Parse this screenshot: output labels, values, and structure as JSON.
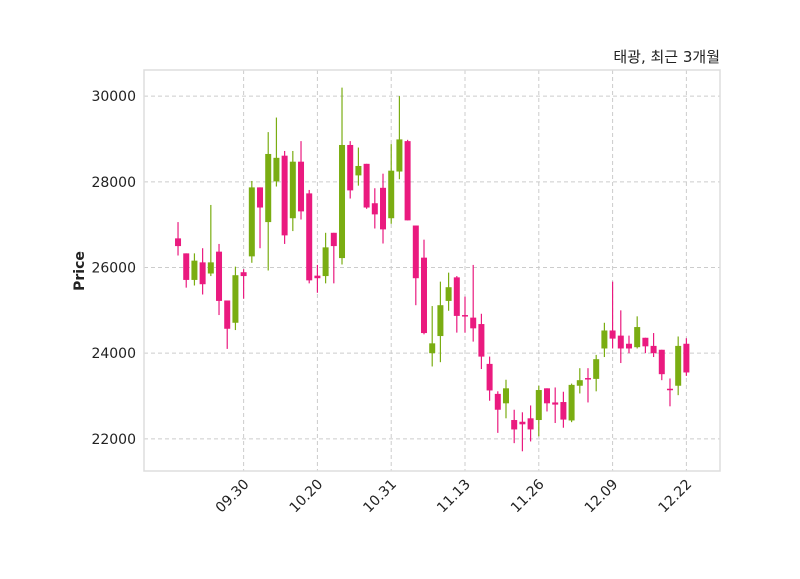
{
  "chart_data": {
    "type": "candlestick",
    "title": "태광, 최근 3개월",
    "xlabel": "",
    "ylabel": "Price",
    "ylim": [
      21250,
      30610
    ],
    "xlim": [
      -4.15,
      66.1
    ],
    "grid": true,
    "colors": {
      "up": "#7aad12",
      "down": "#ea1a7f",
      "grid": "#cccccc",
      "frame": "#dddddd"
    },
    "y_ticks": [
      22000,
      24000,
      26000,
      28000,
      30000
    ],
    "y_tick_labels": [
      "22000",
      "24000",
      "26000",
      "28000",
      "30000"
    ],
    "x_ticks": [
      8,
      17,
      26,
      35,
      44,
      53,
      62
    ],
    "x_tick_labels": [
      "09.30",
      "10.20",
      "10.31",
      "11.13",
      "11.26",
      "12.09",
      "12.22"
    ],
    "ohlc": [
      [
        26680,
        27060,
        26280,
        26500
      ],
      [
        26330,
        26330,
        25530,
        25710
      ],
      [
        25710,
        26330,
        25580,
        26160
      ],
      [
        26120,
        26450,
        25370,
        25610
      ],
      [
        25860,
        27460,
        25800,
        26120
      ],
      [
        26370,
        26550,
        24890,
        25220
      ],
      [
        25230,
        25230,
        24100,
        24570
      ],
      [
        24710,
        26020,
        24540,
        25820
      ],
      [
        25890,
        25960,
        25270,
        25800
      ],
      [
        26260,
        28020,
        26110,
        27870
      ],
      [
        27870,
        27870,
        26450,
        27400
      ],
      [
        27060,
        29160,
        25930,
        28650
      ],
      [
        28010,
        29500,
        27890,
        28560
      ],
      [
        28610,
        28720,
        26550,
        26750
      ],
      [
        27150,
        28720,
        26850,
        28470
      ],
      [
        28470,
        28950,
        27120,
        27310
      ],
      [
        27730,
        27810,
        25630,
        25700
      ],
      [
        25810,
        26060,
        25410,
        25750
      ],
      [
        25800,
        26810,
        25630,
        26470
      ],
      [
        26810,
        26810,
        25630,
        26500
      ],
      [
        26220,
        30200,
        26070,
        28860
      ],
      [
        28860,
        28950,
        27610,
        27800
      ],
      [
        28150,
        28800,
        27910,
        28370
      ],
      [
        28420,
        28420,
        27370,
        27400
      ],
      [
        27500,
        27850,
        26910,
        27240
      ],
      [
        27860,
        28190,
        26560,
        26890
      ],
      [
        27150,
        28880,
        27020,
        28260
      ],
      [
        28240,
        30000,
        28060,
        28990
      ],
      [
        28950,
        28980,
        27100,
        27100
      ],
      [
        26980,
        26980,
        25120,
        25750
      ],
      [
        26230,
        26650,
        24440,
        24470
      ],
      [
        24000,
        25100,
        23690,
        24230
      ],
      [
        24400,
        25670,
        23790,
        25120
      ],
      [
        25220,
        25880,
        24990,
        25540
      ],
      [
        25770,
        25800,
        24480,
        24870
      ],
      [
        24890,
        25320,
        24480,
        24870
      ],
      [
        24830,
        26060,
        24270,
        24580
      ],
      [
        24680,
        24920,
        23630,
        23920
      ],
      [
        23750,
        23920,
        22890,
        23130
      ],
      [
        23050,
        23110,
        22140,
        22680
      ],
      [
        22830,
        23380,
        22480,
        23180
      ],
      [
        22440,
        22680,
        21900,
        22220
      ],
      [
        22400,
        22620,
        21710,
        22340
      ],
      [
        22480,
        22780,
        21940,
        22220
      ],
      [
        22440,
        23240,
        22060,
        23140
      ],
      [
        23180,
        23180,
        22640,
        22830
      ],
      [
        22850,
        23200,
        22370,
        22800
      ],
      [
        22860,
        23100,
        22260,
        22450
      ],
      [
        22430,
        23290,
        22390,
        23260
      ],
      [
        23240,
        23650,
        23060,
        23370
      ],
      [
        23420,
        23650,
        22850,
        23400
      ],
      [
        23400,
        23960,
        23110,
        23860
      ],
      [
        24110,
        24710,
        23910,
        24530
      ],
      [
        24530,
        25670,
        24110,
        24340
      ],
      [
        24410,
        25000,
        23770,
        24110
      ],
      [
        24220,
        24410,
        24000,
        24110
      ],
      [
        24140,
        24860,
        24110,
        24610
      ],
      [
        24360,
        24360,
        24000,
        24160
      ],
      [
        24170,
        24470,
        23910,
        24000
      ],
      [
        24080,
        24080,
        23370,
        23510
      ],
      [
        23170,
        23410,
        22760,
        23150
      ],
      [
        23240,
        24390,
        23020,
        24170
      ],
      [
        24220,
        24350,
        23470,
        23550
      ]
    ]
  }
}
